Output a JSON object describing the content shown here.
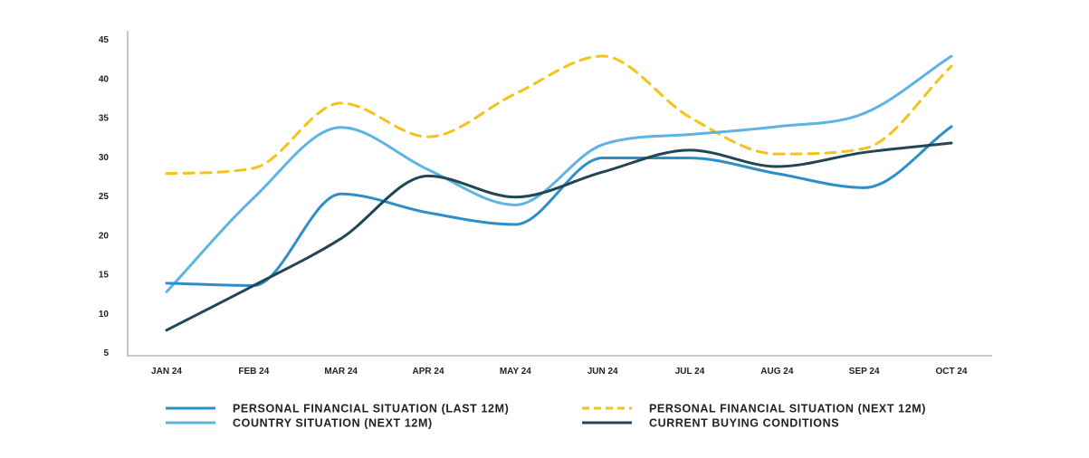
{
  "chart_data": {
    "type": "line",
    "title": "",
    "xlabel": "",
    "ylabel": "",
    "ylim": [
      5,
      45
    ],
    "yticks": [
      "5",
      "10",
      "15",
      "20",
      "25",
      "30",
      "35",
      "40",
      "45"
    ],
    "categories": [
      "JAN 24",
      "FEB 24",
      "MAR 24",
      "APR 24",
      "MAY 24",
      "JUN 24",
      "JUL 24",
      "AUG 24",
      "SEP 24",
      "OCT 24"
    ],
    "grid": false,
    "legend_position": "bottom",
    "series": [
      {
        "key": "personal-last",
        "name": "PERSONAL FINANCIAL SITUATION (LAST 12M)",
        "color": "#2b8fc9",
        "dash": "solid",
        "values": [
          13.8,
          13.5,
          25.2,
          22.8,
          21.3,
          29.8,
          29.8,
          27.8,
          26.0,
          33.8
        ]
      },
      {
        "key": "personal-next",
        "name": "PERSONAL FINANCIAL SITUATION (NEXT 12M)",
        "color": "#f5c21a",
        "dash": "dashed",
        "values": [
          27.8,
          28.5,
          36.8,
          32.5,
          38.0,
          42.8,
          35.0,
          30.3,
          31.0,
          41.5
        ]
      },
      {
        "key": "country-next",
        "name": "COUNTRY SITUATION (NEXT 12M)",
        "color": "#5db4e3",
        "dash": "solid",
        "values": [
          12.7,
          24.7,
          33.7,
          28.3,
          23.8,
          31.5,
          32.8,
          33.8,
          35.5,
          42.8
        ]
      },
      {
        "key": "buying",
        "name": "CURRENT BUYING CONDITIONS",
        "color": "#234657",
        "dash": "solid",
        "values": [
          7.8,
          13.5,
          19.5,
          27.5,
          24.8,
          28.0,
          30.8,
          28.7,
          30.5,
          31.7
        ]
      }
    ]
  }
}
